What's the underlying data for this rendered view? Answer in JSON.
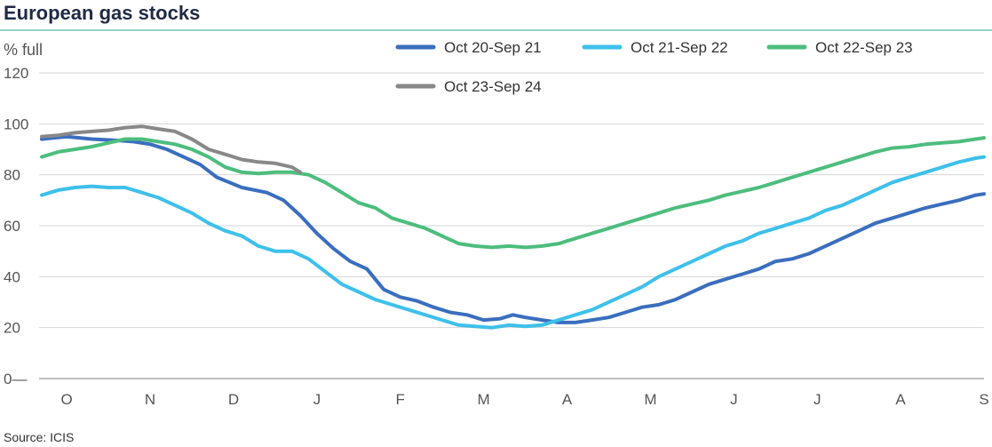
{
  "chart_data": {
    "type": "line",
    "title": "European gas stocks",
    "ylabel": "% full",
    "source": "Source: ICIS",
    "ylim": [
      0,
      120
    ],
    "yticks": [
      0,
      20,
      40,
      60,
      80,
      100,
      120
    ],
    "x_tick_labels": [
      "O",
      "N",
      "D",
      "J",
      "F",
      "M",
      "A",
      "M",
      "J",
      "J",
      "A",
      "S"
    ],
    "grid": true,
    "legend_position": "top-right",
    "x_unit": "months since 1 Oct",
    "series": [
      {
        "name": "Oct 20-Sep 21",
        "color": "#3a6ebe",
        "points": [
          [
            0,
            94
          ],
          [
            0.3,
            95
          ],
          [
            0.6,
            94
          ],
          [
            0.9,
            93.5
          ],
          [
            1.1,
            93
          ],
          [
            1.3,
            92
          ],
          [
            1.5,
            90
          ],
          [
            1.7,
            87
          ],
          [
            1.9,
            84
          ],
          [
            2.1,
            79
          ],
          [
            2.4,
            75
          ],
          [
            2.7,
            73
          ],
          [
            2.9,
            70
          ],
          [
            3.1,
            64
          ],
          [
            3.3,
            57
          ],
          [
            3.5,
            51
          ],
          [
            3.7,
            46
          ],
          [
            3.9,
            43
          ],
          [
            4.1,
            35
          ],
          [
            4.3,
            32
          ],
          [
            4.5,
            30.5
          ],
          [
            4.7,
            28
          ],
          [
            4.9,
            26
          ],
          [
            5.1,
            25
          ],
          [
            5.3,
            23
          ],
          [
            5.5,
            23.5
          ],
          [
            5.65,
            25
          ],
          [
            5.8,
            24
          ],
          [
            6.0,
            23
          ],
          [
            6.2,
            22
          ],
          [
            6.4,
            22
          ],
          [
            6.6,
            23
          ],
          [
            6.8,
            24
          ],
          [
            7.0,
            26
          ],
          [
            7.2,
            28
          ],
          [
            7.4,
            29
          ],
          [
            7.6,
            31
          ],
          [
            7.8,
            34
          ],
          [
            8.0,
            37
          ],
          [
            8.2,
            39
          ],
          [
            8.4,
            41
          ],
          [
            8.6,
            43
          ],
          [
            8.8,
            46
          ],
          [
            9.0,
            47
          ],
          [
            9.2,
            49
          ],
          [
            9.4,
            52
          ],
          [
            9.6,
            55
          ],
          [
            9.8,
            58
          ],
          [
            10.0,
            61
          ],
          [
            10.2,
            63
          ],
          [
            10.4,
            65
          ],
          [
            10.6,
            67
          ],
          [
            10.8,
            68.5
          ],
          [
            11.0,
            70
          ],
          [
            11.2,
            72
          ],
          [
            11.3,
            72.5
          ]
        ]
      },
      {
        "name": "Oct 21-Sep 22",
        "color": "#3ec0ea",
        "points": [
          [
            0,
            72
          ],
          [
            0.2,
            74
          ],
          [
            0.4,
            75
          ],
          [
            0.6,
            75.5
          ],
          [
            0.8,
            75
          ],
          [
            1.0,
            75
          ],
          [
            1.2,
            73
          ],
          [
            1.4,
            71
          ],
          [
            1.6,
            68
          ],
          [
            1.8,
            65
          ],
          [
            2.0,
            61
          ],
          [
            2.2,
            58
          ],
          [
            2.4,
            56
          ],
          [
            2.6,
            52
          ],
          [
            2.8,
            50
          ],
          [
            3.0,
            50
          ],
          [
            3.2,
            47
          ],
          [
            3.4,
            42
          ],
          [
            3.6,
            37
          ],
          [
            3.8,
            34
          ],
          [
            4.0,
            31
          ],
          [
            4.2,
            29
          ],
          [
            4.4,
            27
          ],
          [
            4.6,
            25
          ],
          [
            4.8,
            23
          ],
          [
            5.0,
            21
          ],
          [
            5.2,
            20.5
          ],
          [
            5.4,
            20
          ],
          [
            5.6,
            21
          ],
          [
            5.8,
            20.5
          ],
          [
            6.0,
            21
          ],
          [
            6.2,
            23
          ],
          [
            6.4,
            25
          ],
          [
            6.6,
            27
          ],
          [
            6.8,
            30
          ],
          [
            7.0,
            33
          ],
          [
            7.2,
            36
          ],
          [
            7.4,
            40
          ],
          [
            7.6,
            43
          ],
          [
            7.8,
            46
          ],
          [
            8.0,
            49
          ],
          [
            8.2,
            52
          ],
          [
            8.4,
            54
          ],
          [
            8.6,
            57
          ],
          [
            8.8,
            59
          ],
          [
            9.0,
            61
          ],
          [
            9.2,
            63
          ],
          [
            9.4,
            66
          ],
          [
            9.6,
            68
          ],
          [
            9.8,
            71
          ],
          [
            10.0,
            74
          ],
          [
            10.2,
            77
          ],
          [
            10.4,
            79
          ],
          [
            10.6,
            81
          ],
          [
            10.8,
            83
          ],
          [
            11.0,
            85
          ],
          [
            11.2,
            86.5
          ],
          [
            11.3,
            87
          ]
        ]
      },
      {
        "name": "Oct 22-Sep 23",
        "color": "#4dbd7e",
        "points": [
          [
            0,
            87
          ],
          [
            0.2,
            89
          ],
          [
            0.4,
            90
          ],
          [
            0.6,
            91
          ],
          [
            0.8,
            92.5
          ],
          [
            1.0,
            94
          ],
          [
            1.2,
            94
          ],
          [
            1.4,
            93
          ],
          [
            1.6,
            92
          ],
          [
            1.8,
            90
          ],
          [
            2.0,
            87
          ],
          [
            2.2,
            83
          ],
          [
            2.4,
            81
          ],
          [
            2.6,
            80.5
          ],
          [
            2.8,
            81
          ],
          [
            3.0,
            81
          ],
          [
            3.2,
            80
          ],
          [
            3.4,
            77
          ],
          [
            3.6,
            73
          ],
          [
            3.8,
            69
          ],
          [
            4.0,
            67
          ],
          [
            4.2,
            63
          ],
          [
            4.4,
            61
          ],
          [
            4.6,
            59
          ],
          [
            4.8,
            56
          ],
          [
            5.0,
            53
          ],
          [
            5.2,
            52
          ],
          [
            5.4,
            51.5
          ],
          [
            5.6,
            52
          ],
          [
            5.8,
            51.5
          ],
          [
            6.0,
            52
          ],
          [
            6.2,
            53
          ],
          [
            6.4,
            55
          ],
          [
            6.6,
            57
          ],
          [
            6.8,
            59
          ],
          [
            7.0,
            61
          ],
          [
            7.2,
            63
          ],
          [
            7.4,
            65
          ],
          [
            7.6,
            67
          ],
          [
            7.8,
            68.5
          ],
          [
            8.0,
            70
          ],
          [
            8.2,
            72
          ],
          [
            8.4,
            73.5
          ],
          [
            8.6,
            75
          ],
          [
            8.8,
            77
          ],
          [
            9.0,
            79
          ],
          [
            9.2,
            81
          ],
          [
            9.4,
            83
          ],
          [
            9.6,
            85
          ],
          [
            9.8,
            87
          ],
          [
            10.0,
            89
          ],
          [
            10.2,
            90.5
          ],
          [
            10.4,
            91
          ],
          [
            10.6,
            92
          ],
          [
            10.8,
            92.5
          ],
          [
            11.0,
            93
          ],
          [
            11.2,
            94
          ],
          [
            11.3,
            94.5
          ]
        ]
      },
      {
        "name": "Oct 23-Sep 24",
        "color": "#888888",
        "points": [
          [
            0,
            95
          ],
          [
            0.2,
            95.5
          ],
          [
            0.4,
            96.5
          ],
          [
            0.6,
            97
          ],
          [
            0.8,
            97.5
          ],
          [
            1.0,
            98.5
          ],
          [
            1.2,
            99
          ],
          [
            1.4,
            98
          ],
          [
            1.6,
            97
          ],
          [
            1.8,
            94
          ],
          [
            2.0,
            90
          ],
          [
            2.2,
            88
          ],
          [
            2.4,
            86
          ],
          [
            2.6,
            85
          ],
          [
            2.8,
            84.5
          ],
          [
            3.0,
            83
          ],
          [
            3.1,
            81
          ]
        ]
      }
    ]
  }
}
